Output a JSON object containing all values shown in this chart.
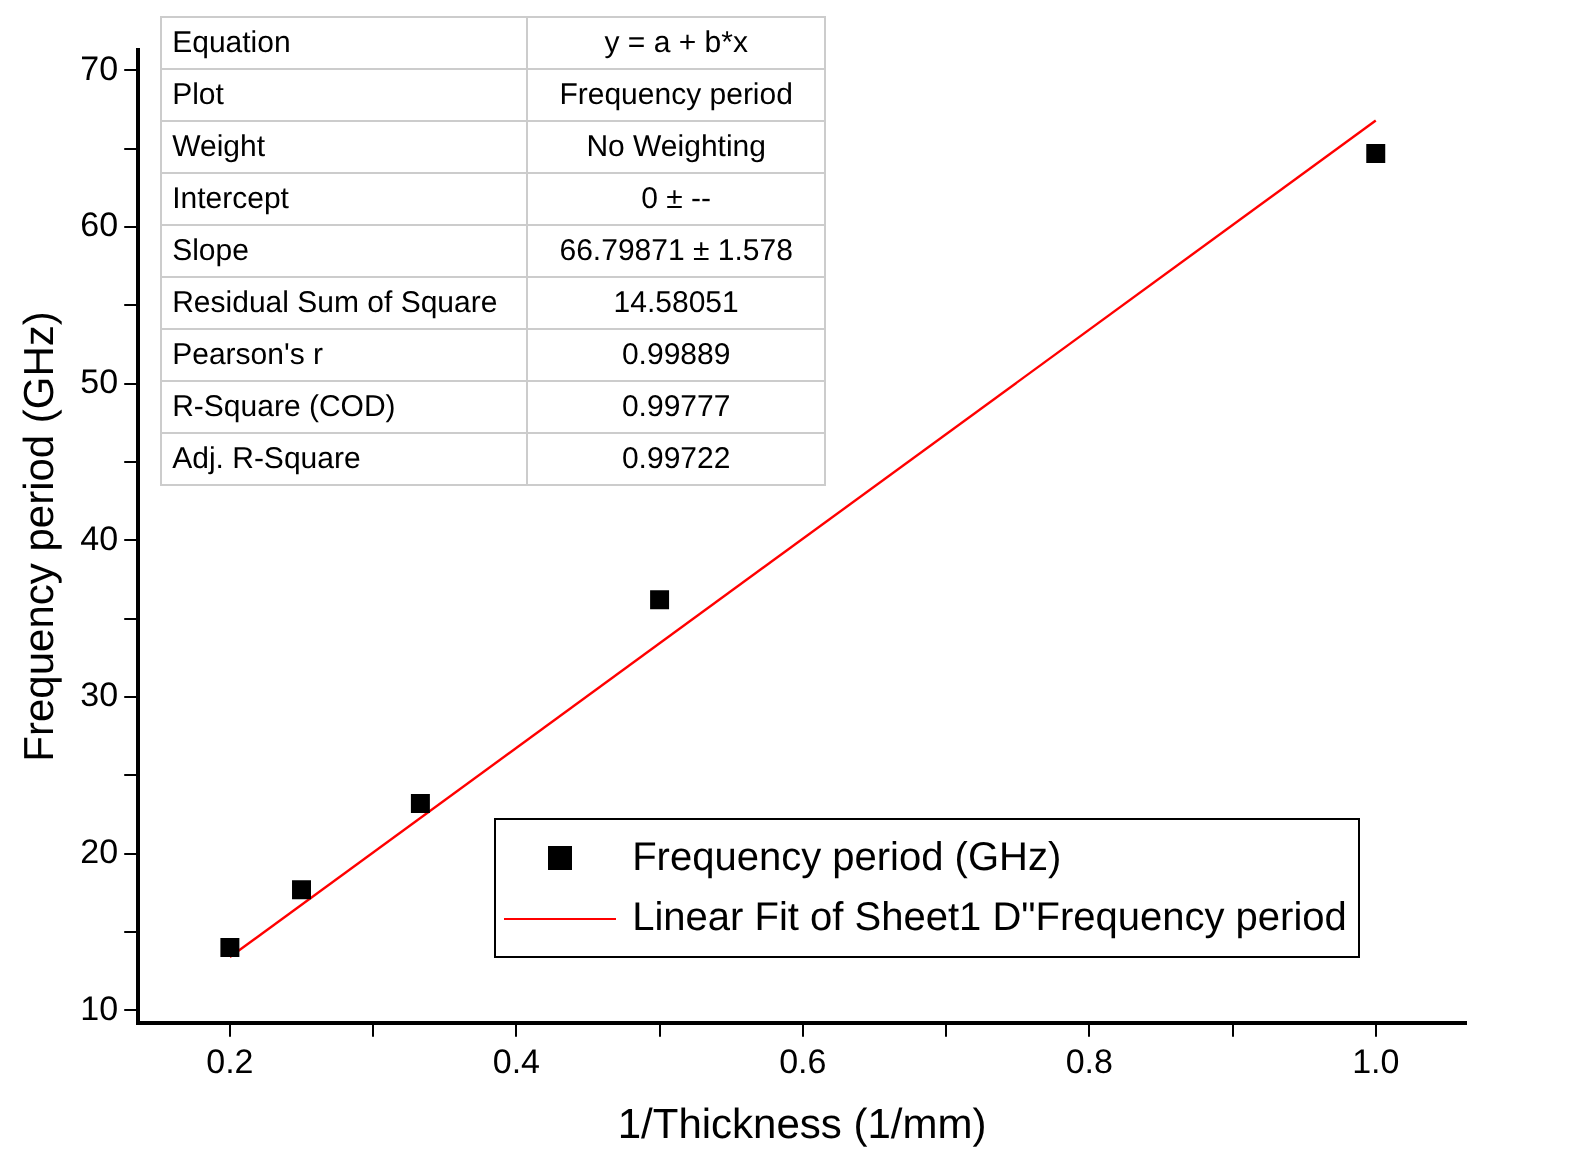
{
  "chart_data": {
    "type": "scatter",
    "xlabel": "1/Thickness (1/mm)",
    "ylabel": "Frequency period (GHz)",
    "xlim": [
      0.136,
      1.063
    ],
    "ylim": [
      9.2,
      71.3
    ],
    "xticks": [
      0.2,
      {
        "value": 0.3,
        "label": null
      },
      0.4,
      {
        "value": 0.5,
        "label": null
      },
      0.6,
      {
        "value": 0.7,
        "label": null
      },
      0.8,
      {
        "value": 0.9,
        "label": null
      },
      "1.0"
    ],
    "yticks": [
      10,
      {
        "value": 15,
        "label": null
      },
      20,
      {
        "value": 25,
        "label": null
      },
      30,
      {
        "value": 35,
        "label": null
      },
      40,
      {
        "value": 45,
        "label": null
      },
      50,
      {
        "value": 55,
        "label": null
      },
      60,
      {
        "value": 65,
        "label": null
      },
      70
    ],
    "grid": false,
    "legend": "bottom right",
    "series": [
      {
        "name": "Frequency period (GHz)",
        "marker": "square",
        "color": "#000000",
        "x": [
          0.2,
          0.25,
          0.333,
          0.5,
          1.0
        ],
        "values": [
          14.0,
          17.7,
          23.2,
          36.2,
          64.7
        ]
      },
      {
        "name": "Linear Fit of Sheet1 D\"Frequency period",
        "type": "line",
        "color": "#ff0000",
        "line_style": "solid",
        "marker": "none",
        "x": [
          0.2,
          1.0
        ],
        "values": [
          13.4,
          66.8
        ]
      }
    ],
    "annotations": [
      "Equation",
      "y = a + b*x",
      "Plot",
      "Frequency period",
      "Weight",
      "No Weighting",
      "Intercept",
      "0 ± --",
      "Slope",
      "66.79871 ± 1.578",
      "Residual Sum of Square",
      "14.58051",
      "Pearson's r",
      "0.99889",
      "R-Square (COD)",
      "0.99777",
      "Adj. R-Square",
      "0.99722"
    ]
  }
}
